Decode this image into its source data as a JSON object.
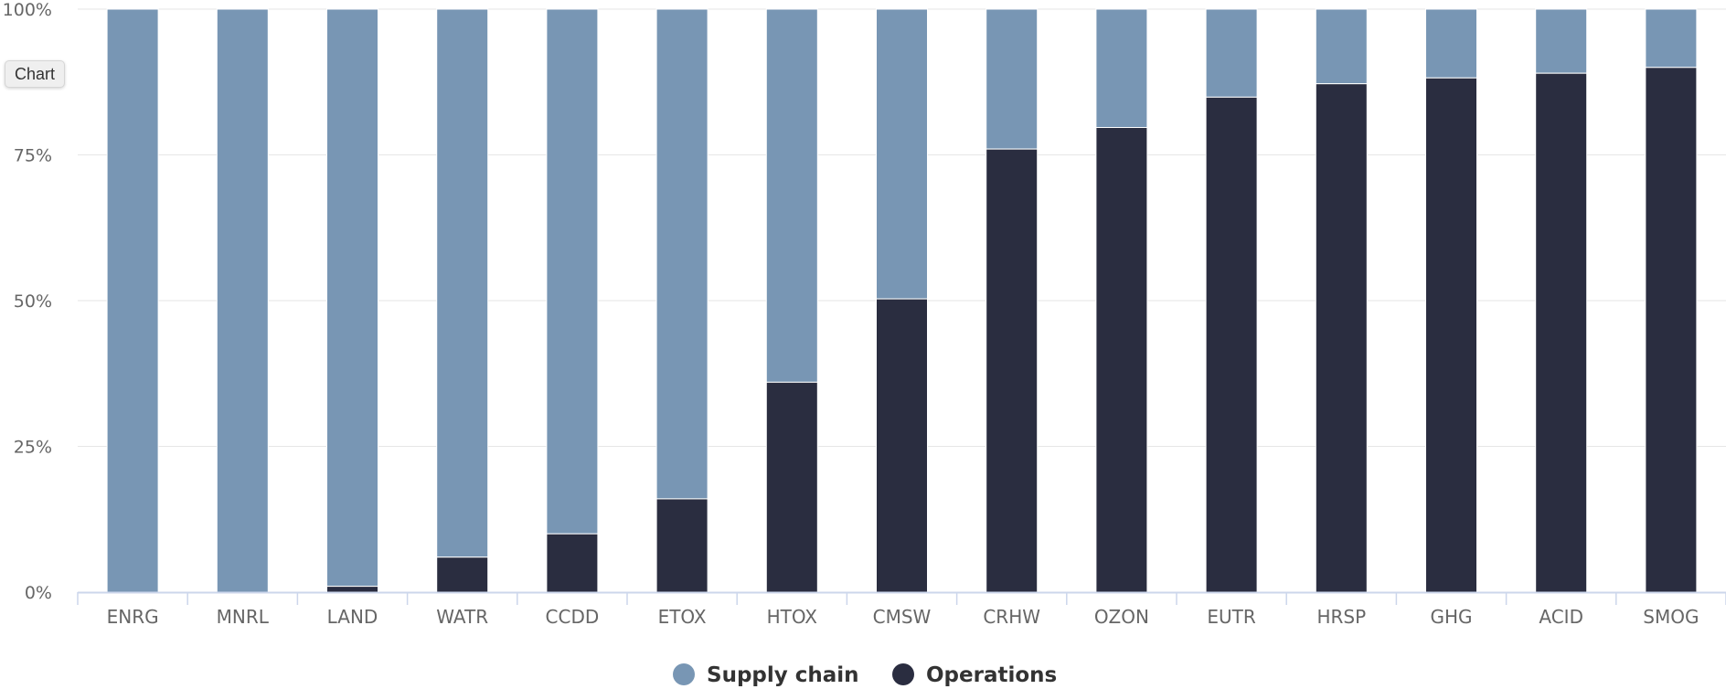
{
  "chart_button": {
    "label": "Chart"
  },
  "colors": {
    "supply_chain": "#7896b4",
    "operations": "#2a2d40",
    "grid": "#e6e6e6",
    "axis": "#ccd6eb",
    "text": "#666666",
    "legend_text": "#333333"
  },
  "chart_data": {
    "type": "bar",
    "stacked": true,
    "normalized": true,
    "categories": [
      "ENRG",
      "MNRL",
      "LAND",
      "WATR",
      "CCDD",
      "ETOX",
      "HTOX",
      "CMSW",
      "CRHW",
      "OZON",
      "EUTR",
      "HRSP",
      "GHG",
      "ACID",
      "SMOG"
    ],
    "series": [
      {
        "name": "Supply chain",
        "values": [
          100,
          100,
          99,
          94,
          90,
          84,
          64,
          49.7,
          24,
          20.3,
          15.1,
          12.8,
          11.8,
          11,
          10
        ]
      },
      {
        "name": "Operations",
        "values": [
          0,
          0,
          1,
          6,
          10,
          16,
          36,
          50.3,
          76,
          79.7,
          84.9,
          87.2,
          88.2,
          89,
          90
        ]
      }
    ],
    "yticks": [
      "0%",
      "25%",
      "50%",
      "75%",
      "100%"
    ],
    "ylim": [
      0,
      100
    ],
    "title": "",
    "xlabel": "",
    "ylabel": "",
    "grid": true,
    "legend_position": "bottom-center"
  }
}
